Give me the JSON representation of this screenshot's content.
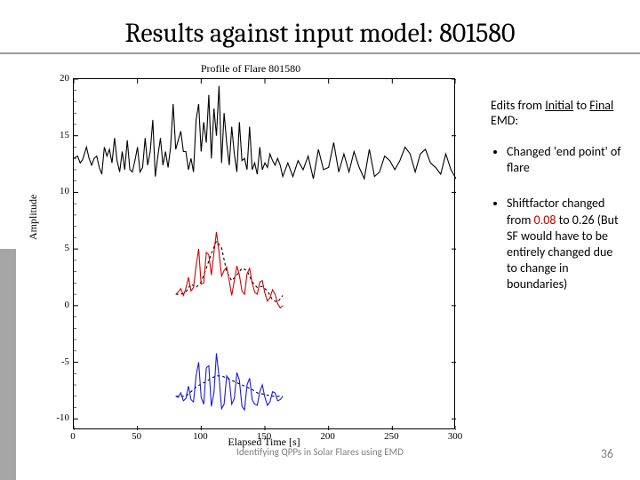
{
  "title": "Results against input model: 801580",
  "chart": {
    "title": "Profile of Flare 801580",
    "xlabel": "Elapsed Time [s]",
    "ylabel": "Amplitude",
    "xlim": [
      0,
      300
    ],
    "ylim": [
      -11,
      20
    ],
    "xticks": [
      0,
      50,
      100,
      150,
      200,
      250,
      300
    ],
    "yticks": [
      -10,
      -5,
      0,
      5,
      10,
      15,
      20
    ],
    "background_color": "#ffffff",
    "axis_color": "#000000",
    "series_black_color": "#000000",
    "series_red_color": "#d40000",
    "series_blue_color": "#1a1ae6",
    "line_width": 1.1,
    "series_black": [
      [
        0,
        13.0
      ],
      [
        3,
        13.2
      ],
      [
        5,
        12.6
      ],
      [
        7,
        12.9
      ],
      [
        10,
        14.0
      ],
      [
        12,
        13.0
      ],
      [
        14,
        12.4
      ],
      [
        16,
        13.0
      ],
      [
        18,
        13.2
      ],
      [
        20,
        12.2
      ],
      [
        22,
        11.6
      ],
      [
        24,
        14.0
      ],
      [
        26,
        13.2
      ],
      [
        28,
        13.8
      ],
      [
        30,
        12.6
      ],
      [
        32,
        14.8
      ],
      [
        34,
        12.8
      ],
      [
        36,
        11.8
      ],
      [
        38,
        13.6
      ],
      [
        40,
        12.0
      ],
      [
        42,
        14.6
      ],
      [
        44,
        12.0
      ],
      [
        46,
        11.8
      ],
      [
        48,
        12.8
      ],
      [
        50,
        14.0
      ],
      [
        52,
        11.8
      ],
      [
        54,
        12.2
      ],
      [
        56,
        14.8
      ],
      [
        58,
        12.4
      ],
      [
        60,
        13.6
      ],
      [
        62,
        16.4
      ],
      [
        64,
        11.4
      ],
      [
        66,
        13.2
      ],
      [
        68,
        14.8
      ],
      [
        70,
        12.4
      ],
      [
        72,
        13.6
      ],
      [
        74,
        12.2
      ],
      [
        76,
        14.0
      ],
      [
        78,
        17.8
      ],
      [
        80,
        13.8
      ],
      [
        82,
        14.6
      ],
      [
        84,
        15.4
      ],
      [
        86,
        13.6
      ],
      [
        88,
        13.6
      ],
      [
        90,
        12.0
      ],
      [
        92,
        13.0
      ],
      [
        94,
        11.8
      ],
      [
        96,
        16.4
      ],
      [
        98,
        17.8
      ],
      [
        100,
        13.6
      ],
      [
        102,
        16.2
      ],
      [
        104,
        14.4
      ],
      [
        106,
        18.6
      ],
      [
        108,
        13.0
      ],
      [
        110,
        17.4
      ],
      [
        112,
        15.0
      ],
      [
        114,
        19.4
      ],
      [
        116,
        12.6
      ],
      [
        118,
        17.0
      ],
      [
        120,
        14.4
      ],
      [
        122,
        12.4
      ],
      [
        124,
        15.8
      ],
      [
        126,
        13.4
      ],
      [
        128,
        11.8
      ],
      [
        130,
        16.2
      ],
      [
        132,
        12.8
      ],
      [
        134,
        13.0
      ],
      [
        136,
        12.0
      ],
      [
        138,
        15.8
      ],
      [
        140,
        12.0
      ],
      [
        142,
        12.6
      ],
      [
        144,
        11.6
      ],
      [
        146,
        14.0
      ],
      [
        148,
        12.0
      ],
      [
        150,
        12.6
      ],
      [
        152,
        12.2
      ],
      [
        154,
        13.4
      ],
      [
        156,
        12.8
      ],
      [
        158,
        12.4
      ],
      [
        160,
        13.0
      ],
      [
        162,
        12.4
      ],
      [
        164,
        11.4
      ],
      [
        168,
        12.6
      ],
      [
        172,
        11.4
      ],
      [
        176,
        12.8
      ],
      [
        180,
        12.0
      ],
      [
        184,
        13.2
      ],
      [
        188,
        11.2
      ],
      [
        192,
        13.8
      ],
      [
        196,
        12.0
      ],
      [
        200,
        12.2
      ],
      [
        204,
        14.4
      ],
      [
        208,
        11.8
      ],
      [
        212,
        13.4
      ],
      [
        216,
        11.8
      ],
      [
        220,
        13.6
      ],
      [
        224,
        12.2
      ],
      [
        228,
        11.2
      ],
      [
        232,
        13.8
      ],
      [
        236,
        11.4
      ],
      [
        240,
        11.8
      ],
      [
        244,
        13.2
      ],
      [
        248,
        12.8
      ],
      [
        252,
        12.0
      ],
      [
        256,
        12.8
      ],
      [
        260,
        14.0
      ],
      [
        264,
        13.4
      ],
      [
        268,
        11.8
      ],
      [
        272,
        13.4
      ],
      [
        276,
        13.8
      ],
      [
        280,
        12.6
      ],
      [
        284,
        12.2
      ],
      [
        288,
        11.6
      ],
      [
        292,
        13.4
      ],
      [
        296,
        12.0
      ],
      [
        300,
        11.2
      ]
    ],
    "series_red_trend": [
      [
        80,
        1.0
      ],
      [
        84,
        1.0
      ],
      [
        88,
        1.2
      ],
      [
        92,
        1.9
      ],
      [
        96,
        1.6
      ],
      [
        100,
        2.1
      ],
      [
        104,
        3.3
      ],
      [
        108,
        4.6
      ],
      [
        112,
        5.7
      ],
      [
        116,
        5.1
      ],
      [
        120,
        3.0
      ],
      [
        124,
        2.2
      ],
      [
        128,
        2.7
      ],
      [
        132,
        3.3
      ],
      [
        136,
        3.1
      ],
      [
        140,
        2.1
      ],
      [
        144,
        1.6
      ],
      [
        148,
        1.7
      ],
      [
        152,
        1.3
      ],
      [
        156,
        0.5
      ],
      [
        160,
        0.3
      ],
      [
        164,
        0.9
      ]
    ],
    "series_red_osc": [
      [
        80,
        1.0
      ],
      [
        82,
        1.2
      ],
      [
        84,
        1.5
      ],
      [
        86,
        0.9
      ],
      [
        88,
        1.5
      ],
      [
        90,
        2.5
      ],
      [
        92,
        1.3
      ],
      [
        94,
        1.6
      ],
      [
        96,
        3.5
      ],
      [
        98,
        5.0
      ],
      [
        100,
        1.9
      ],
      [
        102,
        2.0
      ],
      [
        104,
        4.7
      ],
      [
        106,
        4.5
      ],
      [
        108,
        2.7
      ],
      [
        110,
        4.7
      ],
      [
        112,
        6.5
      ],
      [
        114,
        4.7
      ],
      [
        116,
        2.6
      ],
      [
        118,
        3.1
      ],
      [
        120,
        3.4
      ],
      [
        122,
        2.2
      ],
      [
        124,
        0.9
      ],
      [
        126,
        2.2
      ],
      [
        128,
        3.5
      ],
      [
        130,
        2.7
      ],
      [
        132,
        1.3
      ],
      [
        134,
        1.0
      ],
      [
        136,
        2.8
      ],
      [
        138,
        3.3
      ],
      [
        140,
        2.0
      ],
      [
        142,
        1.2
      ],
      [
        144,
        1.0
      ],
      [
        146,
        2.1
      ],
      [
        148,
        2.2
      ],
      [
        150,
        1.1
      ],
      [
        152,
        0.4
      ],
      [
        154,
        0.7
      ],
      [
        156,
        1.4
      ],
      [
        158,
        1.0
      ],
      [
        160,
        0.2
      ],
      [
        162,
        -0.2
      ],
      [
        164,
        0.0
      ]
    ],
    "series_blue_trend": [
      [
        80,
        -8.0
      ],
      [
        84,
        -8.0
      ],
      [
        88,
        -8.0
      ],
      [
        92,
        -7.6
      ],
      [
        96,
        -7.2
      ],
      [
        100,
        -6.9
      ],
      [
        104,
        -6.7
      ],
      [
        108,
        -6.4
      ],
      [
        112,
        -6.2
      ],
      [
        116,
        -6.2
      ],
      [
        120,
        -6.4
      ],
      [
        124,
        -6.6
      ],
      [
        128,
        -6.8
      ],
      [
        132,
        -7.0
      ],
      [
        136,
        -7.2
      ],
      [
        140,
        -7.4
      ],
      [
        144,
        -7.7
      ],
      [
        148,
        -7.8
      ],
      [
        152,
        -7.9
      ],
      [
        156,
        -8.0
      ],
      [
        160,
        -8.0
      ],
      [
        164,
        -8.0
      ]
    ],
    "series_blue_osc": [
      [
        80,
        -8.0
      ],
      [
        82,
        -8.1
      ],
      [
        84,
        -7.7
      ],
      [
        86,
        -8.4
      ],
      [
        88,
        -8.2
      ],
      [
        90,
        -7.1
      ],
      [
        92,
        -8.3
      ],
      [
        94,
        -8.5
      ],
      [
        96,
        -6.2
      ],
      [
        98,
        -5.0
      ],
      [
        100,
        -8.1
      ],
      [
        102,
        -8.7
      ],
      [
        104,
        -5.5
      ],
      [
        106,
        -5.3
      ],
      [
        108,
        -8.9
      ],
      [
        110,
        -7.7
      ],
      [
        112,
        -4.2
      ],
      [
        114,
        -6.3
      ],
      [
        116,
        -9.1
      ],
      [
        118,
        -8.7
      ],
      [
        120,
        -6.2
      ],
      [
        122,
        -6.5
      ],
      [
        124,
        -8.7
      ],
      [
        126,
        -8.2
      ],
      [
        128,
        -5.9
      ],
      [
        130,
        -6.6
      ],
      [
        132,
        -8.9
      ],
      [
        134,
        -9.2
      ],
      [
        136,
        -7.0
      ],
      [
        138,
        -6.4
      ],
      [
        140,
        -8.3
      ],
      [
        142,
        -8.7
      ],
      [
        144,
        -8.8
      ],
      [
        146,
        -7.6
      ],
      [
        148,
        -7.0
      ],
      [
        150,
        -8.1
      ],
      [
        152,
        -8.8
      ],
      [
        154,
        -8.5
      ],
      [
        156,
        -7.6
      ],
      [
        158,
        -7.7
      ],
      [
        160,
        -8.4
      ],
      [
        162,
        -8.3
      ],
      [
        164,
        -8.0
      ]
    ]
  },
  "side": {
    "head_pre": "Edits from ",
    "head_initial": "Initial",
    "head_mid": " to ",
    "head_final": "Final",
    "head_post": " EMD:",
    "b1": "Changed 'end point' of flare",
    "b2_pre": "Shiftfactor changed from ",
    "b2_v1": "0.08",
    "b2_mid": " to 0.26 (But SF would have to be entirely changed due to change in boundaries)"
  },
  "footer": "Identifying QPPs in Solar Flares using EMD",
  "page": "36"
}
